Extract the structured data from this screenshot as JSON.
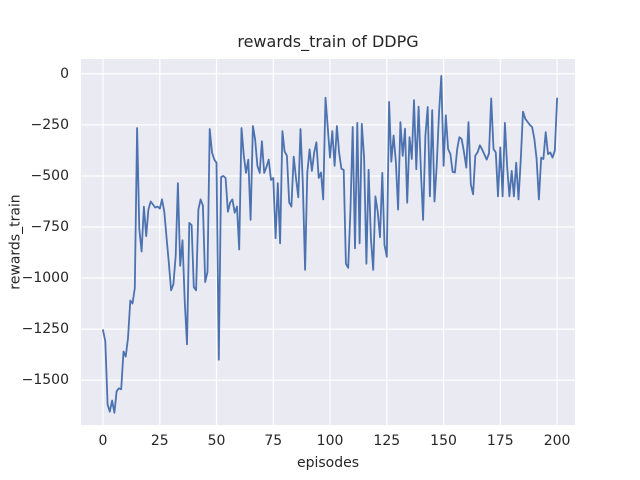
{
  "figure": {
    "title": "rewards_train of DDPG",
    "xlabel": "episodes",
    "ylabel": "rewards_train"
  },
  "colors": {
    "line": "#4c72b0",
    "axes_background": "#eaeaf2",
    "grid": "#ffffff",
    "text": "#262626",
    "figure_background": "#ffffff"
  },
  "chart_data": {
    "type": "line",
    "title": "rewards_train of DDPG",
    "xlabel": "episodes",
    "ylabel": "rewards_train",
    "grid": true,
    "legend": null,
    "xlim": [
      -9.7,
      207.9
    ],
    "ylim": [
      -1720,
      73
    ],
    "x_tick_values": [
      0,
      25,
      50,
      75,
      100,
      125,
      150,
      175,
      200
    ],
    "x_tick_labels": [
      "0",
      "25",
      "50",
      "75",
      "100",
      "125",
      "150",
      "175",
      "200"
    ],
    "y_tick_values": [
      0,
      -250,
      -500,
      -750,
      -1000,
      -1250,
      -1500
    ],
    "y_tick_labels": [
      "0",
      "−250",
      "−500",
      "−750",
      "−1000",
      "−1250",
      "−1500"
    ],
    "series": [
      {
        "name": "rewards_train",
        "x": [
          0,
          1,
          2,
          3,
          4,
          5,
          6,
          7,
          8,
          9,
          10,
          11,
          12,
          13,
          14,
          15,
          16,
          17,
          18,
          19,
          20,
          21,
          22,
          23,
          24,
          25,
          26,
          27,
          28,
          29,
          30,
          31,
          32,
          33,
          34,
          35,
          36,
          37,
          38,
          39,
          40,
          41,
          42,
          43,
          44,
          45,
          46,
          47,
          48,
          49,
          50,
          51,
          52,
          53,
          54,
          55,
          56,
          57,
          58,
          59,
          60,
          61,
          62,
          63,
          64,
          65,
          66,
          67,
          68,
          69,
          70,
          71,
          72,
          73,
          74,
          75,
          76,
          77,
          78,
          79,
          80,
          81,
          82,
          83,
          84,
          85,
          86,
          87,
          88,
          89,
          90,
          91,
          92,
          93,
          94,
          95,
          96,
          97,
          98,
          99,
          100,
          101,
          102,
          103,
          104,
          105,
          106,
          107,
          108,
          109,
          110,
          111,
          112,
          113,
          114,
          115,
          116,
          117,
          118,
          119,
          120,
          121,
          122,
          123,
          124,
          125,
          126,
          127,
          128,
          129,
          130,
          131,
          132,
          133,
          134,
          135,
          136,
          137,
          138,
          139,
          140,
          141,
          142,
          143,
          144,
          145,
          146,
          147,
          148,
          149,
          150,
          151,
          152,
          153,
          154,
          155,
          156,
          157,
          158,
          159,
          160,
          161,
          162,
          163,
          164,
          165,
          166,
          167,
          168,
          169,
          170,
          171,
          172,
          173,
          174,
          175,
          176,
          177,
          178,
          179,
          180,
          181,
          182,
          183,
          184,
          185,
          186,
          187,
          188,
          189,
          190,
          191,
          192,
          193,
          194,
          195,
          196,
          197,
          198,
          199,
          200
        ],
        "y": [
          -1255,
          -1310,
          -1620,
          -1655,
          -1600,
          -1660,
          -1555,
          -1540,
          -1545,
          -1360,
          -1385,
          -1295,
          -1110,
          -1125,
          -1050,
          -265,
          -760,
          -870,
          -650,
          -795,
          -665,
          -625,
          -640,
          -655,
          -650,
          -660,
          -615,
          -675,
          -805,
          -930,
          -1060,
          -1030,
          -890,
          -535,
          -940,
          -815,
          -1110,
          -1325,
          -730,
          -740,
          -1045,
          -1060,
          -665,
          -615,
          -645,
          -1020,
          -970,
          -270,
          -385,
          -420,
          -435,
          -1400,
          -505,
          -500,
          -510,
          -675,
          -630,
          -615,
          -680,
          -650,
          -860,
          -265,
          -400,
          -485,
          -420,
          -715,
          -255,
          -320,
          -450,
          -485,
          -330,
          -485,
          -455,
          -420,
          -520,
          -510,
          -805,
          -535,
          -830,
          -280,
          -380,
          -400,
          -630,
          -650,
          -405,
          -510,
          -605,
          -270,
          -535,
          -960,
          -485,
          -370,
          -475,
          -385,
          -335,
          -510,
          -483,
          -615,
          -117,
          -265,
          -410,
          -280,
          -450,
          -255,
          -385,
          -465,
          -470,
          -930,
          -950,
          -660,
          -260,
          -855,
          -240,
          -830,
          -245,
          -410,
          -930,
          -470,
          -805,
          -960,
          -600,
          -675,
          -800,
          -485,
          -838,
          -896,
          -137,
          -430,
          -302,
          -434,
          -665,
          -236,
          -401,
          -269,
          -631,
          -310,
          -417,
          -129,
          -467,
          -160,
          -475,
          -715,
          -302,
          -162,
          -600,
          -178,
          -625,
          -450,
          -195,
          -10,
          -450,
          -203,
          -368,
          -393,
          -480,
          -483,
          -368,
          -310,
          -320,
          -384,
          -459,
          -236,
          -541,
          -590,
          -401,
          -384,
          -350,
          -370,
          -395,
          -420,
          -390,
          -120,
          -368,
          -385,
          -600,
          -360,
          -600,
          -240,
          -450,
          -600,
          -475,
          -600,
          -435,
          -615,
          -425,
          -185,
          -220,
          -235,
          -250,
          -260,
          -320,
          -417,
          -615,
          -410,
          -417,
          -285,
          -393,
          -385,
          -410,
          -376,
          -120
        ]
      }
    ]
  }
}
